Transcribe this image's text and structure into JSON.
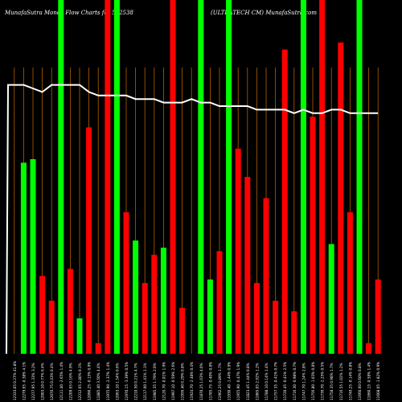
{
  "header": {
    "left": "MunafaSutra  Money Flow  Charts for 532538",
    "right": "(ULTRATECH CM)  MunafaSutra.com"
  },
  "chart_data": {
    "type": "bar",
    "title": "MunafaSutra Money Flow Charts for 532538 (ULTRATECH CM) MunafaSutra.com",
    "ylim": [
      0,
      100
    ],
    "grid": "vertical",
    "colors": {
      "up": "#00ff00",
      "down": "#ff0000",
      "grid": "#b06000",
      "line": "#ffffff",
      "background": "#000000"
    },
    "categories": [
      "12333.05 0.27% 41.8%",
      "12279.65 -0.38% 4.1%",
      "12277.95 1.33% 3.2%",
      "12003.10 0.77% 6.4%",
      "12070.75 0.43% 0.4%",
      "12111.40 -2.65% 1.4%",
      "12209.65 0.16% 4.9%",
      "12212.65 2.80% 0.1%",
      "12090.25 -0.15% 0.9%",
      "11885.40 3.50% 4.4%",
      "11975.90 -2.37% 1.4%",
      "12063.10 1.54% 0.6%",
      "11970.15 -3.39% 0.5%",
      "12210.50 0.21% 4.7%",
      "12117.00 1.41% 1.1%",
      "11985.35 1.79% 2.0%",
      "12120.70 -0.01% 1.9%",
      "11997.10 -0.59% 2.6%",
      "11956.40 0.29% 0.8%",
      "11924.70 -2.48% 0.4%",
      "11870.25 1.03% 4.0%",
      "11785.75 -0.40% 0.8%",
      "11962.25 0.89% 1.7%",
      "11930.40 -1.44% 0.9%",
      "11955.90 -0.47% 1.9%",
      "11823.45 1.44% 0.8%",
      "11865.05 2.92% 1.2%",
      "11788.10 0.14% 1.4%",
      "11757.35 -0.41% 0.7%",
      "11720.45 -0.41% 2.5%",
      "11716.30 -0.98% 0.7%",
      "11747.70 1.24% 2.8%",
      "11756.80 -1.03% 0.8%",
      "11739.70 -2.25% 0.5%",
      "11758.35 0.98% 1.7%",
      "11716.55 1.02% 1.2%",
      "11740.25 -0.14% 0.8%",
      "11660.60 0.60% 0.8%",
      "11660.15 -0.58% 1.4%",
      "11608.05 -1.82% 0.9%"
    ],
    "series": [
      {
        "values": [
          0,
          54,
          55,
          22,
          15,
          100,
          24,
          10,
          64,
          3,
          100,
          100,
          40,
          32,
          20,
          28,
          30,
          100,
          13,
          0,
          100,
          21,
          29,
          100,
          58,
          50,
          20,
          44,
          15,
          86,
          12,
          100,
          67,
          100,
          31,
          88,
          40,
          100,
          3,
          21
        ],
        "up": [
          false,
          true,
          true,
          false,
          false,
          true,
          false,
          true,
          false,
          false,
          false,
          true,
          false,
          true,
          false,
          false,
          true,
          false,
          false,
          true,
          true,
          true,
          false,
          true,
          false,
          false,
          false,
          false,
          false,
          false,
          false,
          true,
          false,
          false,
          true,
          false,
          false,
          true,
          false,
          false
        ]
      },
      {
        "values": [
          76,
          76,
          75,
          74,
          76,
          76,
          76,
          76,
          74,
          73,
          73,
          73,
          73,
          72,
          72,
          72,
          71,
          71,
          71,
          72,
          71,
          71,
          70,
          70,
          70,
          70,
          69,
          69,
          69,
          69,
          68,
          69,
          68,
          68,
          69,
          69,
          68,
          68,
          68,
          68
        ]
      }
    ],
    "xtick_labels_shown": [
      "12333.05 0.27% 41.8%",
      "12279.65 -0.38% 4.1%",
      "12277.95 1.33% 3.2%",
      "12003.10 0.77% 6.4%",
      "12070.75 0.43% 0.4%",
      "12111.40 -2.65% 1.4%",
      "12209.65 0.16% 4.9%",
      "12212.65 2.80% 0.1%",
      "12090.25 -0.15% 0.9%",
      "11885.40 3.50% 4.4%",
      "11975.90 -2.37% 1.4%",
      "12063.10 1.54% 0.6%",
      "11970.15 -3.39% 0.5%",
      "12210.50 0.21% 4.7%",
      "12117.00 1.41% 1.1%",
      "11985.35 1.79% 2.0%",
      "12120.70 -0.01% 1.9%",
      "11997.10 -0.59% 2.6%",
      "11956.40 0.29% 0.8%",
      "11924.70 -2.48% 0.4%",
      "11870.25 1.03% 4.0%",
      "11785.75 -0.40% 0.8%",
      "11962.25 0.89% 1.7%",
      "11930.40 -1.44% 0.9%",
      "11955.90 -0.47% 1.9%",
      "11823.45 1.44% 0.8%",
      "11865.05 2.92% 1.2%",
      "11788.10 0.14% 1.4%",
      "11757.35 -0.41% 0.7%",
      "11720.45 -0.41% 2.5%",
      "11716.30 -0.98% 0.7%",
      "11747.70 1.24% 2.8%",
      "11756.80 -1.03% 0.8%",
      "11739.70 -2.25% 0.5%",
      "11758.35 0.98% 1.7%",
      "11716.55 1.02% 1.2%",
      "11740.25 -0.14% 0.8%",
      "11660.60 0.60% 0.8%",
      "11660.15 -0.58% 1.4%",
      "11608.05 -1.82% 0.9%"
    ]
  }
}
